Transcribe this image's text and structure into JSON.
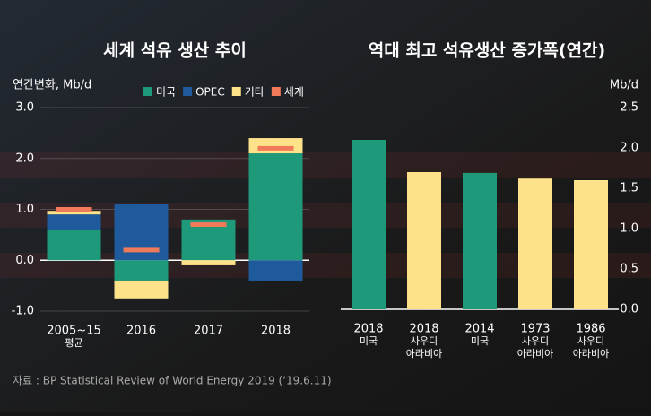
{
  "chart_data": [
    {
      "type": "stacked_bar",
      "title": "세계 석유 생산 추이",
      "y_label": "연간변화, Mb/d",
      "categories": [
        [
          "2005~15",
          "평균"
        ],
        [
          "2016"
        ],
        [
          "2017"
        ],
        [
          "2018"
        ]
      ],
      "series": [
        {
          "name": "미국",
          "color": "#1e9a7a",
          "values": [
            0.6,
            -0.4,
            0.8,
            2.1
          ]
        },
        {
          "name": "OPEC",
          "color": "#1f5b9c",
          "values": [
            0.3,
            1.1,
            0,
            -0.4
          ]
        },
        {
          "name": "기타",
          "color": "#fde28a",
          "values": [
            0.07,
            -0.35,
            -0.1,
            0.3
          ]
        },
        {
          "name": "세계",
          "color": "#f07a5a",
          "style": "marker",
          "values": [
            1.0,
            0.2,
            0.7,
            2.2
          ]
        }
      ],
      "ylim": [
        -1,
        3
      ],
      "yticks": [
        {
          "value": -1,
          "label": "-1.0"
        },
        {
          "value": 0,
          "label": "0.0"
        },
        {
          "value": 1,
          "label": "1.0"
        },
        {
          "value": 2,
          "label": "2.0"
        },
        {
          "value": 3,
          "label": "3.0"
        }
      ],
      "grid": true
    },
    {
      "type": "bar",
      "title": "역대 최고 석유생산 증가폭(연간)",
      "y_label": "Mb/d",
      "categories": [
        [
          "2018",
          "미국"
        ],
        [
          "2018",
          "사우디",
          "아라비아"
        ],
        [
          "2014",
          "미국"
        ],
        [
          "1973",
          "사우디",
          "아라비아"
        ],
        [
          "1986",
          "사우디",
          "아라비아"
        ]
      ],
      "values": [
        2.1,
        1.7,
        1.69,
        1.62,
        1.6
      ],
      "colors": [
        "#1e9a7a",
        "#fde28a",
        "#1e9a7a",
        "#fde28a",
        "#fde28a"
      ],
      "ylim": [
        0,
        2.5
      ],
      "yticks": [
        {
          "value": 0,
          "label": "0.0"
        },
        0.5,
        {
          "value": 1,
          "label": "1.0"
        },
        1.5,
        {
          "value": 2,
          "label": "2.0"
        },
        2.5
      ],
      "y_axis_side": "right"
    }
  ],
  "source": "자료 : BP Statistical Review of World Energy 2019 (‘19.6.11)"
}
